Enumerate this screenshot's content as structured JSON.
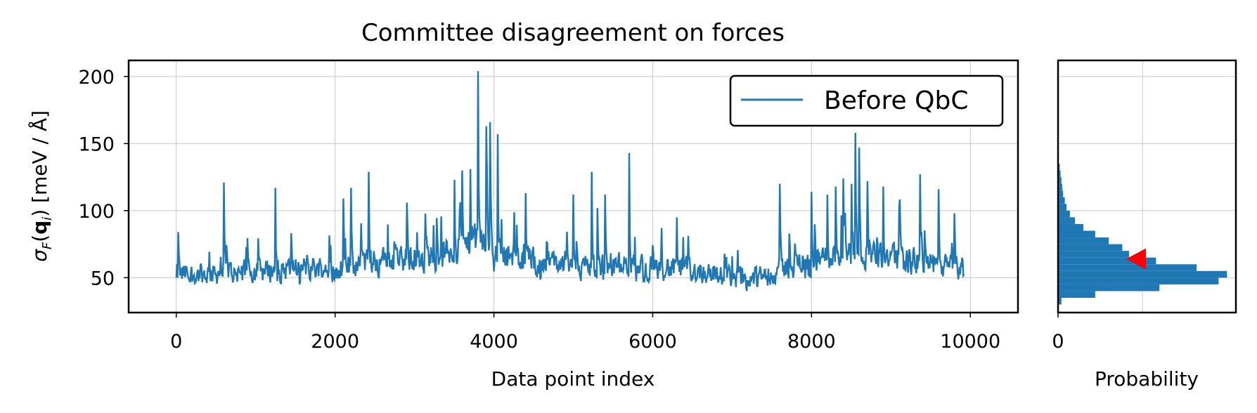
{
  "chart_data": [
    {
      "type": "line",
      "title": "Committee disagreement on forces",
      "xlabel": "Data point index",
      "ylabel": "σ_F(q_i) [meV / Å]",
      "xlim": [
        -600,
        10600
      ],
      "ylim": [
        24,
        212
      ],
      "xticks": [
        0,
        2000,
        4000,
        6000,
        8000,
        10000
      ],
      "yticks": [
        50,
        100,
        150,
        200
      ],
      "grid": true,
      "legend": {
        "position": "top-right",
        "entries": [
          "Before QbC"
        ]
      },
      "series": [
        {
          "name": "Before QbC",
          "color": "#1f77b4",
          "x": [
            0,
            200,
            400,
            600,
            800,
            1000,
            1250,
            1500,
            1800,
            2000,
            2100,
            2200,
            2420,
            2600,
            2900,
            3100,
            3300,
            3500,
            3650,
            3800,
            3950,
            4050,
            4200,
            4400,
            4600,
            4800,
            5000,
            5200,
            5300,
            5500,
            5700,
            5900,
            6200,
            6400,
            6600,
            6800,
            7000,
            7200,
            7400,
            7600,
            7800,
            8000,
            8200,
            8400,
            8550,
            8700,
            8900,
            9100,
            9300,
            9500,
            9700,
            9900
          ],
          "mean": [
            52,
            52,
            53,
            55,
            54,
            55,
            56,
            57,
            58,
            56,
            58,
            60,
            63,
            62,
            65,
            66,
            68,
            70,
            74,
            78,
            75,
            70,
            66,
            64,
            62,
            61,
            60,
            60,
            58,
            58,
            59,
            58,
            57,
            56,
            55,
            53,
            50,
            49,
            52,
            56,
            60,
            63,
            66,
            68,
            70,
            68,
            66,
            64,
            62,
            60,
            58,
            57
          ],
          "peaks": [
            [
              20,
              84
            ],
            [
              600,
              121
            ],
            [
              1250,
              117
            ],
            [
              2100,
              109
            ],
            [
              2200,
              117
            ],
            [
              2420,
              129
            ],
            [
              2900,
              106
            ],
            [
              3500,
              123
            ],
            [
              3600,
              130
            ],
            [
              3700,
              131
            ],
            [
              3800,
              204
            ],
            [
              3900,
              163
            ],
            [
              3950,
              166
            ],
            [
              4050,
              157
            ],
            [
              4400,
              113
            ],
            [
              5000,
              112
            ],
            [
              5230,
              129
            ],
            [
              5300,
              102
            ],
            [
              5400,
              112
            ],
            [
              5700,
              143
            ],
            [
              6300,
              95
            ],
            [
              7000,
              66
            ],
            [
              7600,
              120
            ],
            [
              8000,
              114
            ],
            [
              8200,
              112
            ],
            [
              8300,
              118
            ],
            [
              8400,
              124
            ],
            [
              8500,
              120
            ],
            [
              8550,
              158
            ],
            [
              8600,
              147
            ],
            [
              8700,
              122
            ],
            [
              8900,
              118
            ],
            [
              9100,
              103
            ],
            [
              9370,
              127
            ],
            [
              9600,
              116
            ],
            [
              9800,
              98
            ]
          ],
          "min": 32,
          "max": 204
        }
      ]
    },
    {
      "type": "bar",
      "orientation": "horizontal",
      "xlabel": "Probability",
      "xticks": [
        0
      ],
      "ylim": [
        24,
        212
      ],
      "grid": true,
      "bins": [
        30,
        35,
        40,
        45,
        50,
        55,
        60,
        65,
        70,
        75,
        80,
        85,
        90,
        95,
        100,
        105,
        110,
        115,
        120,
        125,
        130
      ],
      "values": [
        0.02,
        0.22,
        0.6,
        0.95,
        1.0,
        0.82,
        0.58,
        0.42,
        0.38,
        0.3,
        0.22,
        0.15,
        0.1,
        0.07,
        0.05,
        0.04,
        0.03,
        0.025,
        0.02,
        0.015,
        0.01
      ],
      "marker": {
        "shape": "triangle-left",
        "color": "#ff0000",
        "y": 64,
        "x": 0.52
      },
      "color": "#1f77b4"
    }
  ]
}
